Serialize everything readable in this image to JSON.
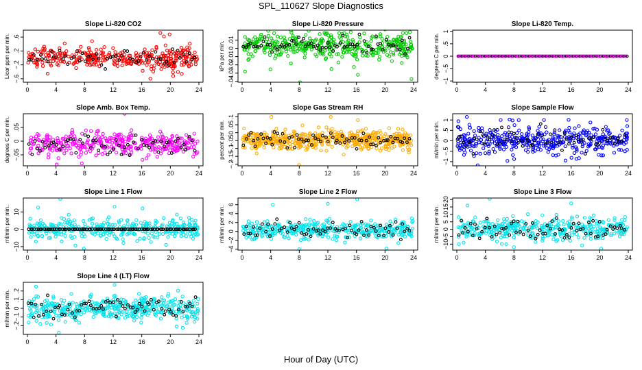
{
  "page": {
    "title": "SPL_110627  Slope Diagnostics",
    "x_axis_title": "Hour of Day (UTC)"
  },
  "chart_data": [
    {
      "type": "scatter",
      "title": "Slope Li-820 CO2",
      "ylabel": "Licor ppm per min.",
      "color": "#ff0000",
      "xlim": [
        0,
        24
      ],
      "ylim": [
        -0.7,
        0.8
      ],
      "xticks": [
        0,
        4,
        8,
        12,
        16,
        20,
        24
      ],
      "yticks": [
        -0.6,
        -0.2,
        0.2,
        0.6
      ],
      "spread": 0.16,
      "center": 0.0,
      "n": 340,
      "outliers": [
        [
          18.6,
          0.72
        ],
        [
          19.1,
          0.62
        ],
        [
          19.9,
          0.68
        ],
        [
          20.4,
          -0.52
        ],
        [
          21.6,
          -0.46
        ],
        [
          17.2,
          -0.6
        ]
      ],
      "black": {
        "n": 60,
        "spread": 0.13
      },
      "pattern": "scatter"
    },
    {
      "type": "scatter",
      "title": "Slope Li-820 Pressure",
      "ylabel": "kPa per min.",
      "color": "#00cc00",
      "xlim": [
        0,
        24
      ],
      "ylim": [
        -0.041,
        0.022
      ],
      "xticks": [
        0,
        4,
        8,
        12,
        16,
        20,
        24
      ],
      "yticks": [
        -0.04,
        -0.03,
        -0.02,
        -0.01,
        0.0,
        0.01
      ],
      "spread": 0.008,
      "center": 0.003,
      "n": 420,
      "outliers": [
        [
          0.4,
          -0.028
        ],
        [
          8.1,
          -0.041
        ],
        [
          16.2,
          -0.032
        ],
        [
          23.7,
          -0.037
        ],
        [
          12.5,
          -0.025
        ]
      ],
      "black": {
        "n": 70,
        "spread": 0.005
      },
      "pattern": "scatter"
    },
    {
      "type": "scatter",
      "title": "Slope Li-820 Temp.",
      "ylabel": "degrees C per min.",
      "color": "#ff00ff",
      "xlim": [
        0,
        24
      ],
      "ylim": [
        -1.05,
        1.05
      ],
      "xticks": [
        0,
        4,
        8,
        12,
        16,
        20,
        24
      ],
      "yticks": [
        -1.0,
        -0.5,
        0.0,
        0.5,
        1.0
      ],
      "spread": 0.0,
      "center": 0.0,
      "n": 100,
      "outliers": [],
      "black": {
        "n": 60,
        "spread": 0.0
      },
      "pattern": "flat"
    },
    {
      "type": "scatter",
      "title": "Slope Amb. Box Temp.",
      "ylabel": "degrees C per min.",
      "color": "#ff00ff",
      "xlim": [
        0,
        24
      ],
      "ylim": [
        -0.09,
        0.1
      ],
      "xticks": [
        0,
        4,
        8,
        12,
        16,
        20,
        24
      ],
      "yticks": [
        -0.05,
        0.0,
        0.05
      ],
      "spread": 0.022,
      "center": -0.01,
      "n": 360,
      "outliers": [
        [
          13.6,
          0.1
        ],
        [
          4.1,
          -0.085
        ]
      ],
      "black": {
        "n": 60,
        "spread": 0.018
      },
      "pattern": "scatter"
    },
    {
      "type": "scatter",
      "title": "Slope Gas Stream RH",
      "ylabel": "percent per min.",
      "color": "#ffaa00",
      "xlim": [
        0,
        24
      ],
      "ylim": [
        -0.21,
        0.12
      ],
      "xticks": [
        0,
        4,
        8,
        12,
        16,
        20,
        24
      ],
      "yticks": [
        -0.2,
        -0.15,
        -0.1,
        -0.05,
        0.0,
        0.05,
        0.1
      ],
      "spread": 0.03,
      "center": -0.045,
      "n": 520,
      "outliers": [
        [
          4.1,
          0.1
        ],
        [
          8.0,
          -0.205
        ],
        [
          16.2,
          0.08
        ],
        [
          12.4,
          0.1
        ]
      ],
      "black": {
        "n": 70,
        "spread": 0.025
      },
      "pattern": "scatter"
    },
    {
      "type": "scatter",
      "title": "Slope Sample Flow",
      "ylabel": "ml/min per min.",
      "color": "#0000ff",
      "xlim": [
        0,
        24
      ],
      "ylim": [
        -1.2,
        1.3
      ],
      "xticks": [
        0,
        4,
        8,
        12,
        16,
        20,
        24
      ],
      "yticks": [
        -1.0,
        -0.5,
        0.0,
        0.5,
        1.0
      ],
      "spread": 0.35,
      "center": 0.0,
      "n": 420,
      "outliers": [
        [
          1.4,
          1.15
        ],
        [
          12.2,
          1.0
        ],
        [
          23.8,
          1.0
        ]
      ],
      "black": {
        "n": 70,
        "spread": 0.3
      },
      "pattern": "scatter"
    },
    {
      "type": "scatter",
      "title": "Slope Line 1 Flow",
      "ylabel": "ml/min per min.",
      "color": "#00e5ee",
      "xlim": [
        0,
        24
      ],
      "ylim": [
        -12,
        18
      ],
      "xticks": [
        0,
        4,
        8,
        12,
        16,
        20,
        24
      ],
      "yticks": [
        -10,
        0,
        10
      ],
      "spread": 3.0,
      "center": 0.0,
      "n": 380,
      "outliers": [
        [
          4.6,
          17.5
        ],
        [
          1.5,
          12.5
        ],
        [
          7.9,
          -11
        ],
        [
          16.1,
          12
        ],
        [
          19.4,
          -9
        ],
        [
          12.2,
          13
        ]
      ],
      "black": {
        "n": 90,
        "spread": 0.0
      },
      "pattern": "line1"
    },
    {
      "type": "scatter",
      "title": "Slope Line 2 Flow",
      "ylabel": "ml/min per min.",
      "color": "#00e5ee",
      "xlim": [
        0,
        24
      ],
      "ylim": [
        -4.2,
        7.5
      ],
      "xticks": [
        0,
        4,
        8,
        12,
        16,
        20,
        24
      ],
      "yticks": [
        -4,
        -2,
        0,
        2,
        4,
        6
      ],
      "spread": 1.0,
      "center": 0.3,
      "n": 380,
      "outliers": [
        [
          8.0,
          -4.0
        ],
        [
          12.0,
          6.2
        ],
        [
          16.1,
          7.2
        ],
        [
          20.2,
          -3.8
        ],
        [
          4.3,
          6.0
        ]
      ],
      "black": {
        "n": 70,
        "spread": 1.1
      },
      "pattern": "scatter"
    },
    {
      "type": "scatter",
      "title": "Slope Line 3 Flow",
      "ylabel": "ml/min per min.",
      "color": "#00e5ee",
      "xlim": [
        0,
        24
      ],
      "ylim": [
        -14,
        21
      ],
      "xticks": [
        0,
        4,
        8,
        12,
        16,
        20,
        24
      ],
      "yticks": [
        -10,
        -5,
        0,
        5,
        10,
        15,
        20
      ],
      "spread": 3.8,
      "center": 0.5,
      "n": 380,
      "outliers": [
        [
          4.6,
          20.5
        ],
        [
          1.5,
          16
        ],
        [
          16.0,
          17.5
        ],
        [
          8.0,
          -12
        ],
        [
          20.2,
          -13
        ]
      ],
      "black": {
        "n": 70,
        "spread": 3.5
      },
      "pattern": "scatter"
    },
    {
      "type": "scatter",
      "title": "Slope Line 4 (LT) Flow",
      "ylabel": "ml/min per min.",
      "color": "#00e5ee",
      "xlim": [
        0,
        24
      ],
      "ylim": [
        -0.3,
        0.3
      ],
      "xticks": [
        0,
        4,
        8,
        12,
        16,
        20,
        24
      ],
      "yticks": [
        -0.2,
        -0.1,
        0.0,
        0.1,
        0.2
      ],
      "spread": 0.07,
      "center": 0.0,
      "n": 420,
      "outliers": [
        [
          12.2,
          0.27
        ],
        [
          4.4,
          -0.28
        ],
        [
          1.2,
          0.25
        ]
      ],
      "black": {
        "n": 70,
        "spread": 0.06
      },
      "pattern": "scatter"
    }
  ]
}
